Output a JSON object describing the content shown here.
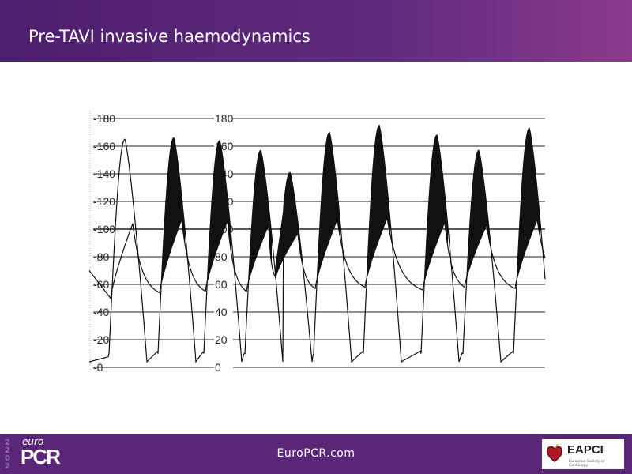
{
  "header": {
    "title": "Pre-TAVI invasive haemodynamics"
  },
  "tracing": {
    "left_axis_ticks": [
      "180",
      "160",
      "140",
      "120",
      "100",
      "80",
      "60",
      "40",
      "20",
      "0"
    ],
    "right_axis_ticks": [
      "180",
      "160",
      "140",
      "120",
      "100",
      "80",
      "60",
      "40",
      "20",
      "0"
    ],
    "tick_values": [
      180,
      160,
      140,
      120,
      100,
      80,
      60,
      40,
      20,
      0
    ],
    "lv_peaks": [
      165,
      166,
      164,
      157,
      141,
      170,
      175,
      168,
      157,
      173
    ],
    "ao_peaks": [
      104,
      107,
      106,
      103,
      97,
      107,
      108,
      105,
      103,
      107
    ],
    "ao_troughs": [
      50,
      54,
      55,
      55,
      65,
      57,
      58,
      56,
      58,
      57
    ],
    "trace_color": "#111111"
  },
  "footer": {
    "logo_year": "2022",
    "logo_euro": "euro",
    "logo_pcr": "PCR",
    "url": "EuroPCR.com",
    "partner_name": "EAPCI",
    "partner_sub": "European Society of Cardiology"
  }
}
